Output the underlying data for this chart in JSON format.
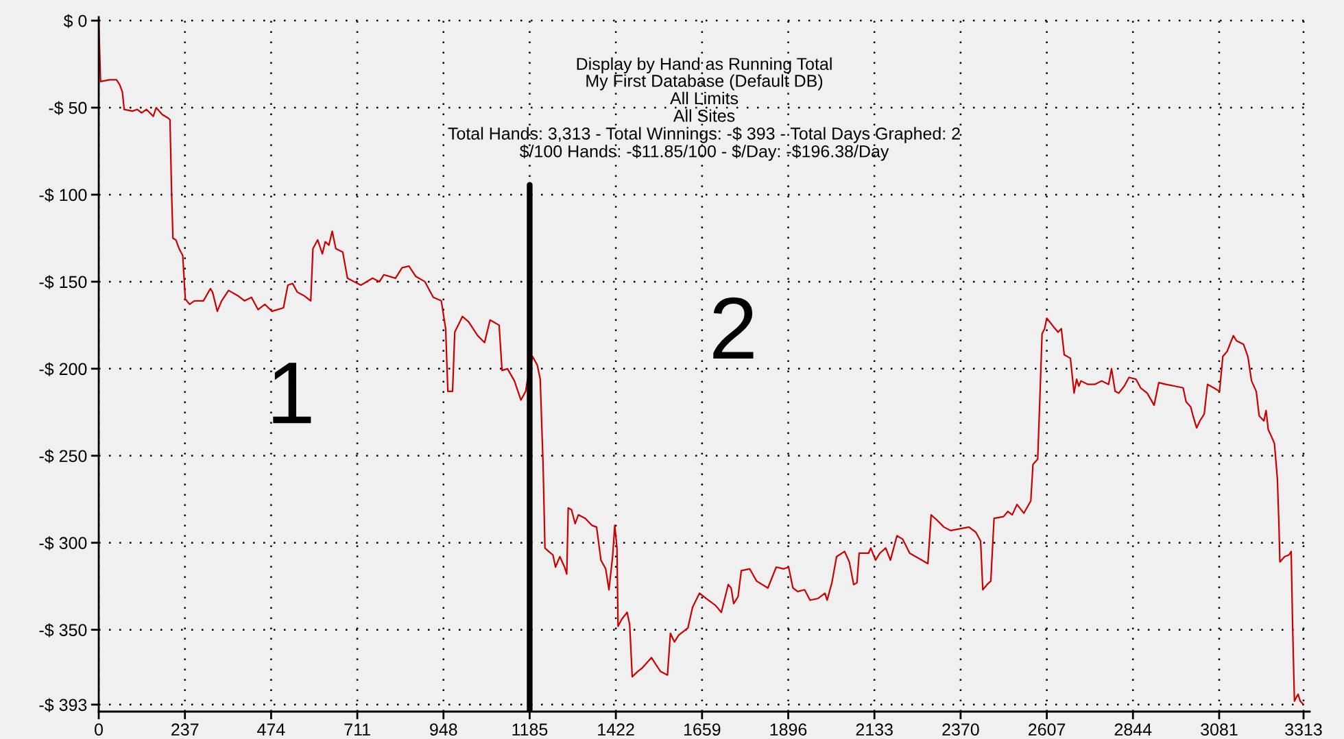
{
  "chart_data": {
    "type": "line",
    "title": "Display by Hand as Running Total",
    "subtitle": "My First Database (Default DB)\nAll Limits\nAll Sites\nTotal Hands: 3,313 - Total Winnings: -$ 393 - Total Days Graphed: 2\n$/100 Hands: -$11.85/100 - $/Day: -$196.38/Day",
    "annotations": [
      "1",
      "2"
    ],
    "x": [
      0,
      5,
      30,
      49,
      58,
      65,
      70,
      93,
      106,
      118,
      131,
      150,
      158,
      175,
      191,
      196,
      200,
      204,
      212,
      221,
      231,
      238,
      250,
      263,
      288,
      307,
      313,
      326,
      338,
      357,
      382,
      401,
      420,
      438,
      457,
      476,
      508,
      520,
      533,
      546,
      564,
      583,
      589,
      602,
      615,
      623,
      633,
      642,
      652,
      671,
      684,
      721,
      753,
      772,
      784,
      816,
      834,
      853,
      872,
      897,
      920,
      942,
      954,
      960,
      973,
      979,
      1000,
      1017,
      1042,
      1061,
      1076,
      1101,
      1109,
      1124,
      1143,
      1161,
      1174,
      1180,
      1193,
      1206,
      1214,
      1222,
      1227,
      1237,
      1249,
      1256,
      1268,
      1281,
      1287,
      1291,
      1300,
      1310,
      1319,
      1338,
      1356,
      1369,
      1381,
      1394,
      1403,
      1413,
      1419,
      1425,
      1428,
      1438,
      1453,
      1460,
      1467,
      1482,
      1494,
      1507,
      1520,
      1532,
      1545,
      1564,
      1572,
      1583,
      1595,
      1620,
      1633,
      1652,
      1670,
      1696,
      1712,
      1731,
      1739,
      1746,
      1758,
      1767,
      1790,
      1809,
      1840,
      1863,
      1884,
      1897,
      1909,
      1922,
      1941,
      1956,
      1978,
      1997,
      2003,
      2016,
      2029,
      2051,
      2064,
      2076,
      2085,
      2091,
      2117,
      2123,
      2136,
      2148,
      2164,
      2177,
      2195,
      2211,
      2230,
      2255,
      2280,
      2289,
      2305,
      2324,
      2343,
      2368,
      2393,
      2412,
      2425,
      2431,
      2443,
      2453,
      2462,
      2488,
      2500,
      2512,
      2525,
      2544,
      2563,
      2569,
      2582,
      2588,
      2594,
      2601,
      2607,
      2626,
      2638,
      2647,
      2655,
      2672,
      2682,
      2689,
      2695,
      2701,
      2720,
      2739,
      2758,
      2777,
      2785,
      2795,
      2805,
      2820,
      2833,
      2852,
      2865,
      2883,
      2902,
      2915,
      2934,
      2959,
      2982,
      2990,
      3003,
      3009,
      3019,
      3028,
      3040,
      3049,
      3066,
      3082,
      3091,
      3103,
      3120,
      3129,
      3148,
      3160,
      3170,
      3183,
      3191,
      3204,
      3210,
      3216,
      3225,
      3233,
      3241,
      3245,
      3248,
      3261,
      3273,
      3279,
      3283,
      3288,
      3298,
      3304,
      3313
    ],
    "values": [
      0,
      -35,
      -34,
      -34,
      -37,
      -41,
      -51,
      -52,
      -51,
      -53,
      -51,
      -55,
      -50,
      -54,
      -56,
      -57,
      -96,
      -125,
      -126,
      -131,
      -135,
      -160,
      -163,
      -161,
      -161,
      -154,
      -156,
      -167,
      -161,
      -155,
      -158,
      -161,
      -159,
      -166,
      -163,
      -167,
      -165,
      -152,
      -151,
      -156,
      -158,
      -161,
      -131,
      -126,
      -134,
      -127,
      -129,
      -121,
      -131,
      -133,
      -148,
      -152,
      -148,
      -150,
      -146,
      -148,
      -142,
      -141,
      -147,
      -150,
      -159,
      -161,
      -177,
      -213,
      -213,
      -179,
      -170,
      -173,
      -181,
      -185,
      -172,
      -175,
      -201,
      -200,
      -207,
      -218,
      -213,
      -205,
      -193,
      -198,
      -206,
      -256,
      -303,
      -305,
      -307,
      -314,
      -308,
      -314,
      -318,
      -280,
      -281,
      -289,
      -284,
      -286,
      -290,
      -291,
      -310,
      -315,
      -327,
      -308,
      -290,
      -303,
      -348,
      -344,
      -340,
      -347,
      -377,
      -374,
      -372,
      -369,
      -366,
      -370,
      -374,
      -376,
      -352,
      -357,
      -353,
      -349,
      -337,
      -329,
      -332,
      -336,
      -340,
      -324,
      -326,
      -335,
      -331,
      -316,
      -315,
      -322,
      -326,
      -314,
      -315,
      -314,
      -326,
      -328,
      -327,
      -333,
      -332,
      -329,
      -333,
      -323,
      -308,
      -305,
      -311,
      -324,
      -323,
      -306,
      -306,
      -303,
      -310,
      -306,
      -303,
      -310,
      -296,
      -298,
      -306,
      -309,
      -312,
      -284,
      -287,
      -291,
      -293,
      -292,
      -291,
      -294,
      -299,
      -327,
      -324,
      -322,
      -286,
      -285,
      -282,
      -284,
      -278,
      -283,
      -276,
      -255,
      -252,
      -217,
      -180,
      -177,
      -171,
      -176,
      -179,
      -177,
      -192,
      -194,
      -214,
      -206,
      -210,
      -207,
      -209,
      -209,
      -207,
      -209,
      -200,
      -213,
      -214,
      -210,
      -205,
      -206,
      -211,
      -214,
      -221,
      -208,
      -209,
      -210,
      -211,
      -219,
      -222,
      -227,
      -234,
      -230,
      -226,
      -209,
      -211,
      -213,
      -193,
      -190,
      -181,
      -184,
      -186,
      -193,
      -207,
      -213,
      -227,
      -230,
      -224,
      -235,
      -239,
      -243,
      -263,
      -287,
      -311,
      -308,
      -307,
      -305,
      -348,
      -391,
      -387,
      -391,
      -393
    ],
    "color": "#cc0000",
    "xlim": [
      0,
      3330
    ],
    "xticks": [
      0,
      237,
      474,
      711,
      948,
      1185,
      1422,
      1659,
      1896,
      2133,
      2370,
      2607,
      2844,
      3081,
      3313
    ],
    "ylim": [
      -397,
      2
    ],
    "yticks": [
      {
        "value": 0,
        "label": "$ 0"
      },
      {
        "value": -50,
        "label": "-$ 50"
      },
      {
        "value": -100,
        "label": "-$ 100"
      },
      {
        "value": -150,
        "label": "-$ 150"
      },
      {
        "value": -200,
        "label": "-$ 200"
      },
      {
        "value": -250,
        "label": "-$ 250"
      },
      {
        "value": -300,
        "label": "-$ 300"
      },
      {
        "value": -350,
        "label": "-$ 350"
      },
      {
        "value": -393,
        "label": "-$ 393"
      }
    ],
    "ref_lines": [
      {
        "axis": "x",
        "value": 1185,
        "color": "#000000"
      }
    ],
    "grid": true
  }
}
